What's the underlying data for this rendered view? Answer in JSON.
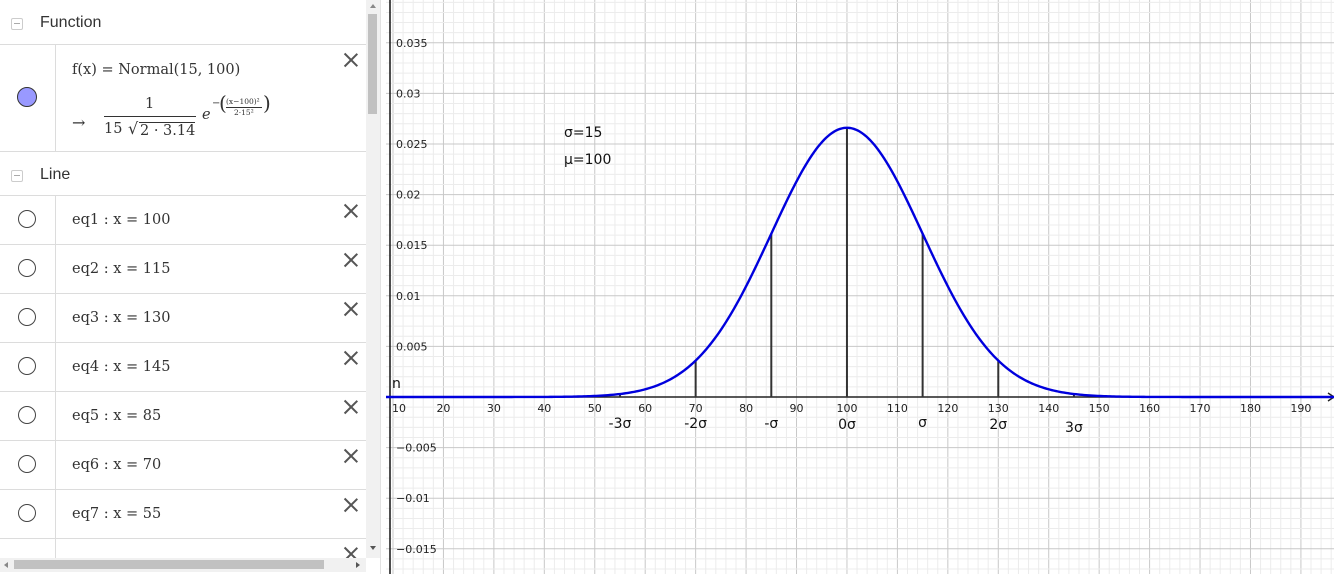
{
  "algebra": {
    "function_group": {
      "label": "Function",
      "item": {
        "definition": "f(x)  =  Normal(15, 100)",
        "arrow": "→",
        "numerator": "1",
        "denominator_coef": "15",
        "sqrt_symbol": "√",
        "denominator_rad": "2 · 3.14",
        "exp_base": "e",
        "exp_sign": "−",
        "exp_numerator": "(x−100)²",
        "exp_denominator": "2·15²"
      }
    },
    "line_group": {
      "label": "Line",
      "items": [
        {
          "text": "eq1 :  x = 100"
        },
        {
          "text": "eq2 :  x = 115"
        },
        {
          "text": "eq3 :  x = 130"
        },
        {
          "text": "eq4 :  x = 145"
        },
        {
          "text": "eq5 :  x = 85"
        },
        {
          "text": "eq6 :  x = 70"
        },
        {
          "text": "eq7 :  x = 55"
        }
      ]
    }
  },
  "graphics": {
    "annotations": {
      "sigma": "σ=15",
      "mu": "μ=100",
      "n": "n"
    },
    "sigma_labels": [
      "-3σ",
      "-2σ",
      "-σ",
      "0σ",
      "σ",
      "2σ",
      "3σ"
    ],
    "x_ticks": [
      "10",
      "20",
      "30",
      "40",
      "50",
      "60",
      "70",
      "80",
      "90",
      "100",
      "110",
      "120",
      "130",
      "140",
      "150",
      "160",
      "170",
      "180",
      "190"
    ],
    "y_ticks": [
      "0.035",
      "0.03",
      "0.025",
      "0.02",
      "0.015",
      "0.01",
      "0.005",
      "−0.005",
      "−0.01",
      "−0.015"
    ],
    "colors": {
      "curve": "#0000dd",
      "segments": "#333333",
      "axis": "#222222"
    }
  },
  "chart_data": {
    "type": "line",
    "series": [
      {
        "name": "f",
        "function": "Normal(15, 100)",
        "mu": 100,
        "sigma": 15
      }
    ],
    "vertical_lines_x": [
      55,
      70,
      85,
      100,
      115,
      130,
      145
    ],
    "xlim": [
      9,
      196
    ],
    "ylim": [
      -0.017,
      0.039
    ],
    "grid": true
  }
}
